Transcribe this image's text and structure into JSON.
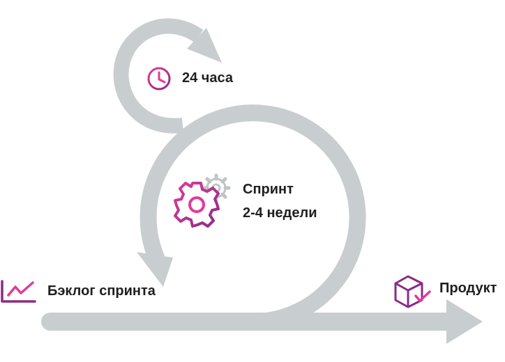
{
  "labels": {
    "daily": "24 часа",
    "sprint_title": "Спринт",
    "sprint_duration": "2-4 недели",
    "backlog": "Бэклог спринта",
    "product": "Продукт"
  },
  "icons": {
    "daily": "clock-icon",
    "sprint": "gears-icon",
    "backlog": "trend-chart-icon",
    "product": "package-check-icon"
  },
  "colors": {
    "arrow": "#c8cdcf",
    "accent_purple": "#8a2b86",
    "accent_pink": "#e23a9a",
    "text": "#1f1f1f"
  }
}
